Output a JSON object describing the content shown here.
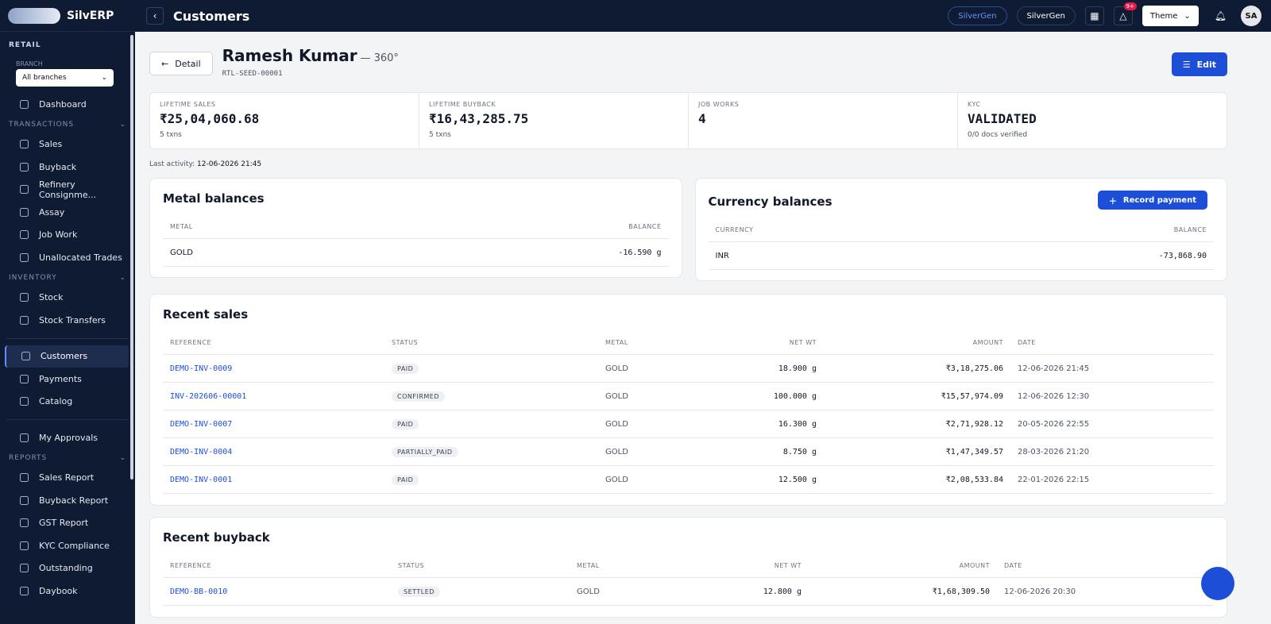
{
  "brand": {
    "name": "SilvERP"
  },
  "sidebar": {
    "section": "RETAIL",
    "branch_label": "BRANCH",
    "branch_value": "All branches",
    "groups": [
      {
        "items": [
          "Dashboard"
        ]
      },
      {
        "title": "TRANSACTIONS",
        "items": [
          "Sales",
          "Buyback",
          "Refinery Consignme...",
          "Assay",
          "Job Work",
          "Unallocated Trades"
        ]
      },
      {
        "title": "INVENTORY",
        "items": [
          "Stock",
          "Stock Transfers"
        ]
      },
      {
        "items": [
          "Customers",
          "Payments",
          "Catalog"
        ]
      },
      {
        "items": [
          "My Approvals"
        ]
      },
      {
        "title": "REPORTS",
        "items": [
          "Sales Report",
          "Buyback Report",
          "GST Report",
          "KYC Compliance",
          "Outstanding",
          "Daybook"
        ]
      }
    ]
  },
  "topbar": {
    "title": "Customers",
    "org_pill": "SilverGen",
    "org": "SilverGen",
    "badge": "9+",
    "theme": "Theme",
    "avatar": "SA"
  },
  "header": {
    "back": "Detail",
    "name": "Ramesh Kumar",
    "suffix": "— 360°",
    "code": "RTL-SEED-00001",
    "edit": "Edit"
  },
  "stats": [
    {
      "label": "LIFETIME SALES",
      "value": "₹25,04,060.68",
      "sub": "5 txns"
    },
    {
      "label": "LIFETIME BUYBACK",
      "value": "₹16,43,285.75",
      "sub": "5 txns"
    },
    {
      "label": "JOB WORKS",
      "value": "4"
    },
    {
      "label": "KYC",
      "value": "VALIDATED",
      "sub": "0/0 docs verified"
    }
  ],
  "last_activity": {
    "label": "Last activity:",
    "value": "12-06-2026 21:45"
  },
  "metal_balances": {
    "title": "Metal balances",
    "columns": [
      "METAL",
      "BALANCE"
    ],
    "rows": [
      [
        "GOLD",
        "-16.590 g"
      ]
    ]
  },
  "currency_balances": {
    "title": "Currency balances",
    "button": "Record payment",
    "columns": [
      "CURRENCY",
      "BALANCE"
    ],
    "rows": [
      [
        "INR",
        "-73,868.90"
      ]
    ]
  },
  "recent_sales": {
    "title": "Recent sales",
    "columns": [
      "REFERENCE",
      "STATUS",
      "METAL",
      "NET WT",
      "AMOUNT",
      "DATE"
    ],
    "rows": [
      [
        "DEMO-INV-0009",
        "PAID",
        "GOLD",
        "18.900 g",
        "₹3,18,275.06",
        "12-06-2026 21:45"
      ],
      [
        "INV-202606-00001",
        "CONFIRMED",
        "GOLD",
        "100.000 g",
        "₹15,57,974.09",
        "12-06-2026 12:30"
      ],
      [
        "DEMO-INV-0007",
        "PAID",
        "GOLD",
        "16.300 g",
        "₹2,71,928.12",
        "20-05-2026 22:55"
      ],
      [
        "DEMO-INV-0004",
        "PARTIALLY_PAID",
        "GOLD",
        "8.750 g",
        "₹1,47,349.57",
        "28-03-2026 21:20"
      ],
      [
        "DEMO-INV-0001",
        "PAID",
        "GOLD",
        "12.500 g",
        "₹2,08,533.84",
        "22-01-2026 22:15"
      ]
    ]
  },
  "recent_buyback": {
    "title": "Recent buyback",
    "columns": [
      "REFERENCE",
      "STATUS",
      "METAL",
      "NET WT",
      "AMOUNT",
      "DATE"
    ],
    "rows": [
      [
        "DEMO-BB-0010",
        "SETTLED",
        "GOLD",
        "12.800 g",
        "₹1,68,309.50",
        "12-06-2026 20:30"
      ]
    ]
  }
}
